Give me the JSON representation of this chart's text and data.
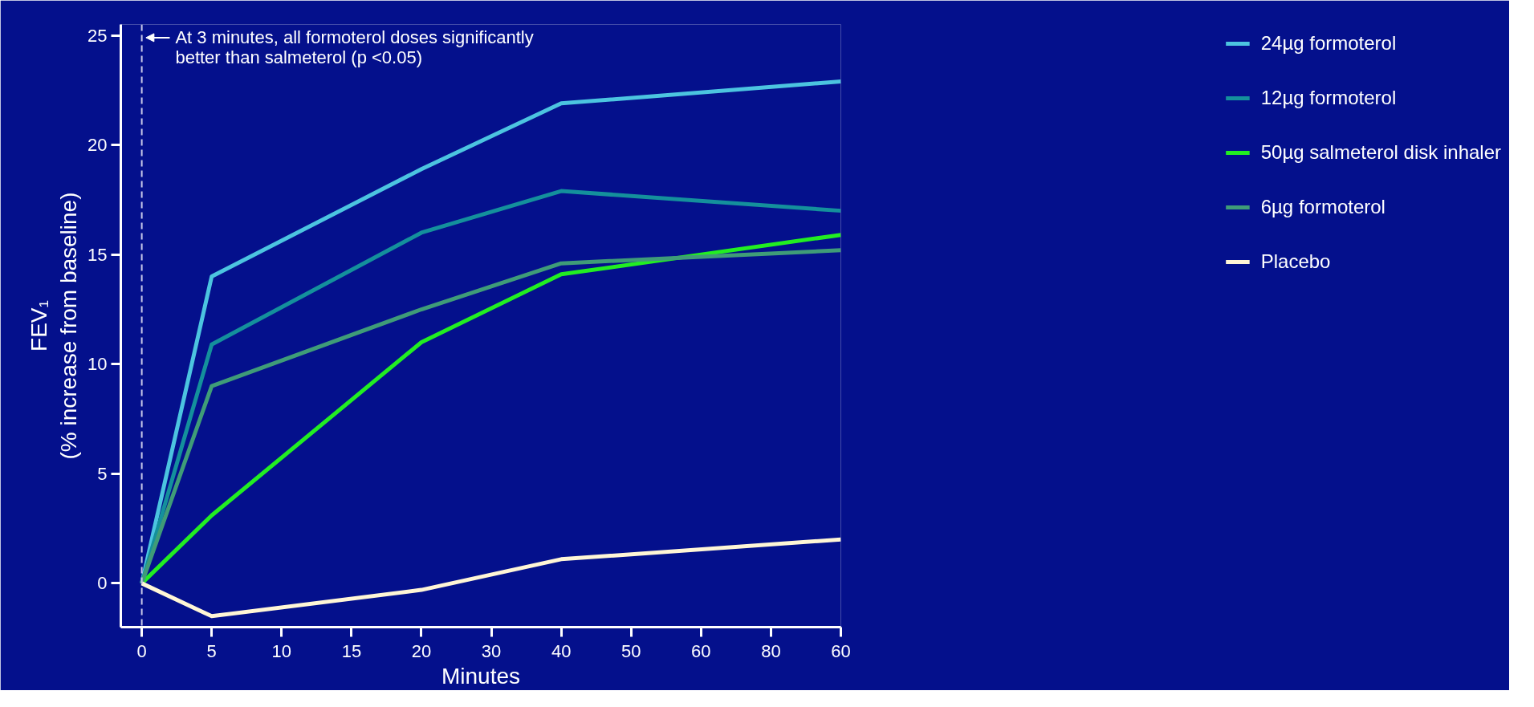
{
  "chart_data": {
    "type": "line",
    "xlabel": "Minutes",
    "ylabel": "FEV₁\n(% increase from baseline)",
    "categories": [
      "0",
      "5",
      "10",
      "15",
      "20",
      "30",
      "40",
      "50",
      "60",
      "80",
      "60"
    ],
    "series": [
      {
        "name": "24µg formoterol",
        "color": "#4cc4e0",
        "values": [
          0,
          14.0,
          null,
          null,
          18.9,
          null,
          21.9,
          null,
          null,
          null,
          22.9
        ]
      },
      {
        "name": "12µg formoterol",
        "color": "#14909c",
        "values": [
          0,
          10.9,
          null,
          null,
          16.0,
          null,
          17.9,
          null,
          null,
          null,
          17.0
        ]
      },
      {
        "name": "50µg salmeterol disk inhaler",
        "color": "#22ee22",
        "values": [
          0,
          3.1,
          null,
          null,
          11.0,
          null,
          14.1,
          null,
          null,
          null,
          15.9
        ]
      },
      {
        "name": "6µg formoterol",
        "color": "#3f9c78",
        "values": [
          0,
          9.0,
          null,
          null,
          12.5,
          null,
          14.6,
          null,
          null,
          null,
          15.2
        ]
      },
      {
        "name": "Placebo",
        "color": "#fff6d6",
        "values": [
          0,
          -1.5,
          null,
          null,
          -0.3,
          null,
          1.1,
          null,
          null,
          null,
          2.0
        ]
      }
    ],
    "ylim": [
      -2,
      25.5
    ],
    "yticks": [
      0,
      5,
      10,
      15,
      20,
      25
    ],
    "ref_lines": [
      {
        "axis": "x",
        "value": "0",
        "label": "At 3 minutes, all formoterol doses significantly\nbetter than salmeterol (p <0.05)",
        "color": "#c8c8e8",
        "line_style": "dashed"
      }
    ],
    "legend": "right",
    "grid": false,
    "marker": "none",
    "line_style": "solid"
  }
}
